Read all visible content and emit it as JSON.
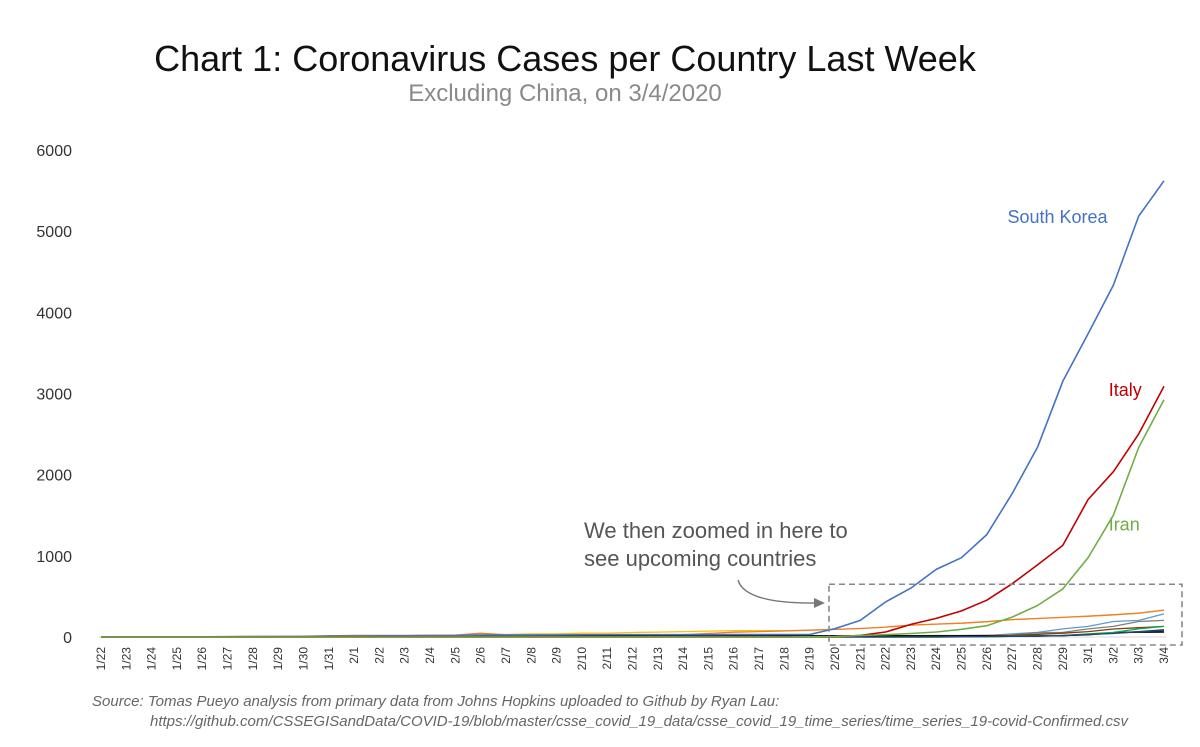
{
  "title": "Chart 1: Coronavirus Cases per Country Last Week",
  "subtitle": "Excluding China, on 3/4/2020",
  "source_line1": "Source: Tomas Pueyo analysis from primary data from Johns Hopkins uploaded to Github by Ryan Lau:",
  "source_line2": "https://github.com/CSSEGISandData/COVID-19/blob/master/csse_covid_19_data/csse_covid_19_time_series/time_series_19-covid-Confirmed.csv",
  "annotation": [
    "We then zoomed in here to",
    "see upcoming countries"
  ],
  "colors": {
    "axis": "#d9d9d9",
    "zoom_box": "#888888",
    "arrow": "#777777"
  },
  "chart_data": {
    "type": "line",
    "ylim": [
      0,
      6000
    ],
    "yticks": [
      0,
      1000,
      2000,
      3000,
      4000,
      5000,
      6000
    ],
    "grid": false,
    "x": [
      "1/22",
      "1/23",
      "1/24",
      "1/25",
      "1/26",
      "1/27",
      "1/28",
      "1/29",
      "1/30",
      "1/31",
      "2/1",
      "2/2",
      "2/3",
      "2/4",
      "2/5",
      "2/6",
      "2/7",
      "2/8",
      "2/9",
      "2/10",
      "2/11",
      "2/12",
      "2/13",
      "2/14",
      "2/15",
      "2/16",
      "2/17",
      "2/18",
      "2/19",
      "2/20",
      "2/21",
      "2/22",
      "2/23",
      "2/24",
      "2/25",
      "2/26",
      "2/27",
      "2/28",
      "2/29",
      "3/1",
      "3/2",
      "3/3",
      "3/4"
    ],
    "series": [
      {
        "name": "South Korea",
        "color": "#4472c4",
        "label_x": "2/28",
        "label_y": 5100,
        "values": [
          1,
          1,
          2,
          2,
          3,
          4,
          4,
          4,
          4,
          11,
          12,
          15,
          15,
          16,
          19,
          23,
          24,
          24,
          25,
          27,
          28,
          28,
          28,
          28,
          28,
          29,
          30,
          31,
          31,
          104,
          204,
          433,
          602,
          833,
          977,
          1261,
          1766,
          2337,
          3150,
          3736,
          4335,
          5186,
          5621
        ]
      },
      {
        "name": "Italy",
        "color": "#c00000",
        "label_x": "3/3",
        "label_y": 2970,
        "values": [
          0,
          0,
          0,
          0,
          0,
          0,
          0,
          0,
          0,
          2,
          2,
          2,
          2,
          2,
          2,
          2,
          3,
          3,
          3,
          3,
          3,
          3,
          3,
          3,
          3,
          3,
          3,
          3,
          3,
          3,
          20,
          62,
          155,
          229,
          322,
          453,
          655,
          888,
          1128,
          1694,
          2036,
          2502,
          3089
        ]
      },
      {
        "name": "Iran",
        "color": "#70ad47",
        "label_x": "3/3",
        "label_y": 1310,
        "values": [
          0,
          0,
          0,
          0,
          0,
          0,
          0,
          0,
          0,
          0,
          0,
          0,
          0,
          0,
          0,
          0,
          0,
          0,
          0,
          0,
          0,
          0,
          0,
          0,
          0,
          0,
          0,
          0,
          2,
          5,
          18,
          28,
          43,
          61,
          95,
          139,
          245,
          388,
          593,
          978,
          1501,
          2336,
          2922
        ]
      },
      {
        "values": [
          2,
          1,
          2,
          2,
          4,
          4,
          7,
          8,
          11,
          11,
          13,
          16,
          17,
          19,
          22,
          45,
          31,
          38,
          38,
          47,
          48,
          55,
          60,
          67,
          73,
          79,
          79,
          79,
          84,
          94,
          105,
          122,
          147,
          159,
          170,
          189,
          214,
          228,
          241,
          256,
          274,
          293,
          331
        ],
        "color": "#ffc000"
      },
      {
        "values": [
          2,
          2,
          2,
          2,
          4,
          4,
          6,
          7,
          11,
          15,
          20,
          20,
          20,
          22,
          22,
          45,
          25,
          25,
          26,
          26,
          26,
          28,
          28,
          29,
          43,
          59,
          66,
          74,
          84,
          94,
          105,
          122,
          147,
          159,
          170,
          189,
          214,
          228,
          241,
          256,
          274,
          293,
          331
        ],
        "color": "#ed7d31"
      },
      {
        "values": [
          2,
          1,
          2,
          2,
          4,
          4,
          7,
          7,
          8,
          8,
          8,
          8,
          8,
          8,
          9,
          9,
          9,
          9,
          9,
          9,
          9,
          9,
          9,
          9,
          9,
          9,
          9,
          9,
          9,
          9,
          9,
          9,
          9,
          9,
          13,
          18,
          38,
          57,
          100,
          130,
          191,
          204,
          285
        ],
        "color": "#5b9bd5"
      },
      {
        "values": [
          1,
          1,
          2,
          2,
          2,
          4,
          4,
          5,
          5,
          5,
          5,
          6,
          6,
          6,
          6,
          9,
          11,
          12,
          12,
          13,
          13,
          13,
          13,
          13,
          13,
          13,
          13,
          13,
          13,
          13,
          13,
          13,
          13,
          13,
          13,
          13,
          13,
          13,
          19,
          27,
          49,
          66,
          89
        ],
        "color": "#1f3864"
      },
      {
        "values": [
          1,
          1,
          1,
          3,
          4,
          4,
          5,
          5,
          6,
          6,
          6,
          6,
          6,
          6,
          6,
          6,
          6,
          6,
          6,
          12,
          14,
          14,
          14,
          16,
          16,
          16,
          16,
          16,
          16,
          16,
          16,
          16,
          16,
          18,
          18,
          21,
          26,
          53,
          57,
          100,
          130,
          191,
          204
        ],
        "color": "#7f7f7f"
      },
      {
        "values": [
          1,
          1,
          2,
          2,
          5,
          5,
          5,
          5,
          5,
          6,
          8,
          8,
          11,
          11,
          11,
          12,
          12,
          12,
          12,
          12,
          13,
          13,
          14,
          15,
          15,
          15,
          15,
          15,
          15,
          15,
          15,
          15,
          15,
          15,
          15,
          15,
          15,
          16,
          16,
          30,
          53,
          59,
          60
        ],
        "color": "#000000"
      },
      {
        "values": [
          0,
          0,
          0,
          0,
          0,
          0,
          0,
          0,
          0,
          0,
          0,
          0,
          0,
          0,
          0,
          0,
          0,
          0,
          0,
          0,
          0,
          0,
          0,
          0,
          0,
          0,
          0,
          0,
          0,
          0,
          0,
          0,
          0,
          0,
          2,
          6,
          18,
          33,
          47,
          67,
          99,
          115,
          130
        ],
        "color": "#843c0c"
      },
      {
        "values": [
          0,
          0,
          0,
          0,
          0,
          0,
          0,
          0,
          0,
          0,
          0,
          0,
          0,
          0,
          0,
          0,
          0,
          0,
          0,
          0,
          0,
          0,
          0,
          0,
          0,
          0,
          0,
          0,
          0,
          0,
          0,
          0,
          0,
          0,
          1,
          1,
          8,
          13,
          18,
          38,
          57,
          100,
          130
        ],
        "color": "#00b050"
      },
      {
        "values": [
          0,
          0,
          0,
          0,
          0,
          0,
          0,
          0,
          0,
          0,
          0,
          0,
          0,
          0,
          0,
          0,
          0,
          0,
          0,
          0,
          0,
          0,
          0,
          0,
          0,
          0,
          0,
          0,
          0,
          0,
          0,
          0,
          0,
          0,
          1,
          5,
          8,
          9,
          19,
          31,
          43,
          65,
          78
        ],
        "color": "#264478"
      }
    ]
  }
}
